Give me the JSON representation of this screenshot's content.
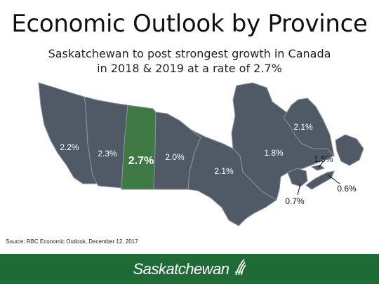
{
  "header": {
    "title": "Economic Outlook by Province",
    "subtitle_line1": "Saskatchewan to post strongest growth in Canada",
    "subtitle_line2": "in 2018 & 2019 at a rate of 2.7%"
  },
  "map": {
    "province_color": "#4f5a66",
    "highlight_color": "#3f7a45",
    "border_color": "#8a939c",
    "provinces": [
      {
        "name": "British Columbia",
        "rate": "2.2%"
      },
      {
        "name": "Alberta",
        "rate": "2.3%"
      },
      {
        "name": "Saskatchewan",
        "rate": "2.7%",
        "highlight": true
      },
      {
        "name": "Manitoba",
        "rate": "2.0%"
      },
      {
        "name": "Ontario",
        "rate": "2.1%"
      },
      {
        "name": "Quebec",
        "rate": "1.8%"
      },
      {
        "name": "Newfoundland and Labrador",
        "rate": "2.1%"
      },
      {
        "name": "Prince Edward Island",
        "rate": "1.5%"
      },
      {
        "name": "Nova Scotia",
        "rate": "0.6%"
      },
      {
        "name": "New Brunswick",
        "rate": "0.7%"
      }
    ]
  },
  "source": "Source: RBC Economic Outlook, December 12, 2017",
  "footer": {
    "brand": "Saskatchewan",
    "color": "#1f6b35",
    "logo_icon": "wheat-sheaf-icon"
  }
}
